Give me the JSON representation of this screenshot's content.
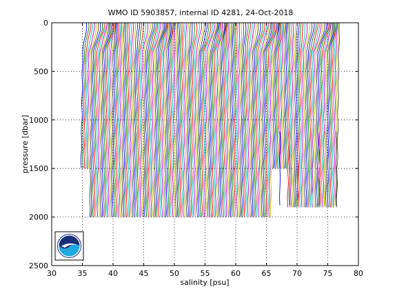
{
  "chart_data": {
    "type": "line",
    "title": "WMO ID 5903857, internal ID 4281, 24-Oct-2018",
    "xlabel": "salinity [psu]",
    "ylabel": "pressure [dbar]",
    "xlim": [
      30,
      80
    ],
    "ylim": [
      0,
      2500
    ],
    "y_reversed": true,
    "grid": true,
    "xticks": [
      "30",
      "35",
      "40",
      "45",
      "50",
      "55",
      "60",
      "65",
      "70",
      "75",
      "80"
    ],
    "yticks": [
      "0",
      "500",
      "1000",
      "1500",
      "2000",
      "2500"
    ],
    "profile_colors": [
      "#0000ff",
      "#008000",
      "#ff0000",
      "#00bfbf",
      "#bf00bf",
      "#bfbf00",
      "#404040"
    ],
    "profile_offset_step_psu": 0.25,
    "profiles": [
      {
        "offset": 0.0,
        "surface_salinity": 34.9,
        "deep_salinity": 34.65,
        "max_pressure": 1150
      },
      {
        "offset": 1.5,
        "surface_salinity": 36.4,
        "deep_salinity": 35.3,
        "max_pressure": 1500
      },
      {
        "offset": 2.0,
        "surface_salinity": 37.0,
        "deep_salinity": 35.5,
        "max_pressure": 2000
      },
      {
        "offset": 41.5,
        "surface_salinity": 77.0,
        "deep_salinity": 76.2,
        "max_pressure": 1900
      }
    ],
    "profile_groups": [
      {
        "first_offset": 0.0,
        "last_offset": 1.25,
        "max_pressure": 1500
      },
      {
        "first_offset": 1.5,
        "last_offset": 31.0,
        "max_pressure": 2000
      },
      {
        "first_offset": 31.25,
        "last_offset": 33.5,
        "max_pressure": 1500
      },
      {
        "first_offset": 33.75,
        "last_offset": 41.75,
        "max_pressure": 1900
      }
    ],
    "shallow_deep_profiles": [
      {
        "deep_salinity": 67.2,
        "max_pressure": 1900
      },
      {
        "deep_salinity": 68.8,
        "max_pressure": 1900
      },
      {
        "deep_salinity": 70.1,
        "max_pressure": 1900
      },
      {
        "deep_salinity": 72.4,
        "max_pressure": 1900
      },
      {
        "deep_salinity": 73.6,
        "max_pressure": 1900
      },
      {
        "deep_salinity": 74.6,
        "max_pressure": 1900
      },
      {
        "deep_salinity": 76.4,
        "max_pressure": 1900
      }
    ]
  },
  "logo": {
    "text": "NOAA",
    "colors": {
      "ring": "#ffffff",
      "sky": "#1a2f7a",
      "water": "#20a8e0",
      "border": "#000000"
    }
  }
}
